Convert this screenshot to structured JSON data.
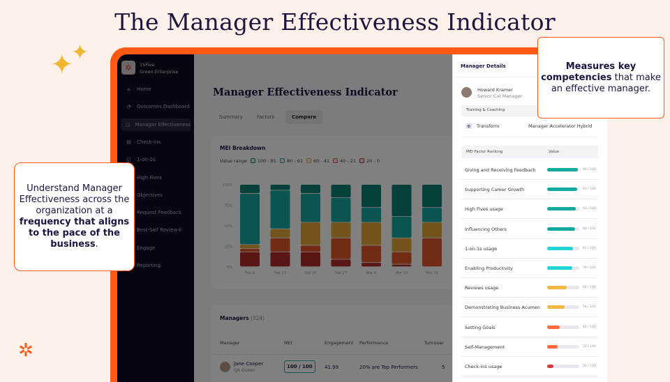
{
  "slide": {
    "title": "The Manager Effectiveness Indicator",
    "callout_left": {
      "pre": "Understand Manager Effectiveness across the organization at a ",
      "bold": "frequency that aligns to the pace of the business",
      "post": "."
    },
    "callout_right": {
      "bold": "Measures key competencies",
      "post": " that make an effective manager."
    },
    "accent": "#ff5a14"
  },
  "sidebar": {
    "org_name": "15Five",
    "org_sub": "Green Enterprise",
    "items": [
      {
        "label": "Home",
        "icon": "⌂"
      },
      {
        "label": "Outcomes Dashboard",
        "icon": "◔"
      },
      {
        "label": "Manager Effectiveness",
        "icon": "◫",
        "active": true
      },
      {
        "label": "Check-ins",
        "icon": "▤"
      },
      {
        "label": "1-on-1s",
        "icon": "◱"
      },
      {
        "label": "High Fives",
        "icon": "✋"
      },
      {
        "label": "Objectives",
        "icon": "◎"
      },
      {
        "label": "Request Feedback",
        "icon": "✉"
      },
      {
        "label": "Best-Self Review®",
        "icon": "★"
      },
      {
        "label": "Engage",
        "icon": "♡"
      },
      {
        "label": "Reporting",
        "icon": "▥"
      }
    ]
  },
  "main": {
    "title": "Manager Effectiveness Indicator",
    "tabs": [
      "Summary",
      "Factors",
      "Compare"
    ],
    "active_tab": "Compare",
    "breakdown_title": "MEI Breakdown",
    "value_range_label": "Value range",
    "managers_title": "Managers",
    "managers_count": "(324)",
    "table_headers": [
      "Manager",
      "MEI",
      "Engagement",
      "Performance",
      "Turnover"
    ],
    "rows": [
      {
        "name": "Jane Cooper",
        "role": "QA Queen",
        "mei": "100 / 100",
        "engagement": "41.99",
        "performance": "20% are Top Performers",
        "turnover": "5"
      }
    ]
  },
  "chart_data": {
    "type": "bar",
    "stacked": true,
    "categories": [
      "Feb 6",
      "Feb 13",
      "Feb 20",
      "Feb 27",
      "Mar 6",
      "Mar 13",
      "Mar 20"
    ],
    "yticks": [
      "100%",
      "75%",
      "50%",
      "25%",
      "0%"
    ],
    "ylim": [
      0,
      100
    ],
    "series": [
      {
        "name": "20 - 0",
        "color": "#b42a2a",
        "values": [
          18,
          18,
          18,
          9,
          5,
          3,
          0
        ]
      },
      {
        "name": "40 - 21",
        "color": "#e4562a",
        "values": [
          4,
          17,
          8,
          26,
          21,
          15,
          35
        ]
      },
      {
        "name": "60 - 41",
        "color": "#e6a838",
        "values": [
          5,
          11,
          28,
          19,
          28,
          17,
          19
        ]
      },
      {
        "name": "80 - 61",
        "color": "#14aaa2",
        "values": [
          62,
          47,
          35,
          30,
          18,
          26,
          18
        ]
      },
      {
        "name": "100 - 81",
        "color": "#0c8076",
        "values": [
          11,
          7,
          11,
          16,
          28,
          39,
          28
        ]
      }
    ]
  },
  "details": {
    "title": "Manager Details",
    "manager_name": "Howard Kramer",
    "manager_role": "Senior Cat Manager",
    "training_header": "Training & Coaching",
    "program": "Transform",
    "program_value": "Manager Accelerator Hybrid",
    "ranking_header": "MEI Factor Ranking",
    "value_header": "Value",
    "factors": [
      {
        "label": "Giving and Receiving Feedback",
        "value": 96,
        "text": "96 / 100",
        "color": "#13a99f"
      },
      {
        "label": "Supporting Career Growth",
        "value": 93,
        "text": "93 / 100",
        "color": "#13a99f"
      },
      {
        "label": "High Fives usage",
        "value": 90,
        "text": "90 / 100",
        "color": "#13a99f"
      },
      {
        "label": "Influencing Others",
        "value": 88,
        "text": "88 / 100",
        "color": "#13a99f"
      },
      {
        "label": "1-on-1s usage",
        "value": 81,
        "text": "81 / 100",
        "color": "#22d3d8"
      },
      {
        "label": "Enabling Productivity",
        "value": 78,
        "text": "78 / 100",
        "color": "#22d3d8"
      },
      {
        "label": "Reviews usage",
        "value": 60,
        "text": "60 / 100",
        "color": "#f4b942"
      },
      {
        "label": "Demonstrating Business Acumen",
        "value": 54,
        "text": "54 / 100",
        "color": "#f4b942"
      },
      {
        "label": "Setting Goals",
        "value": 40,
        "text": "40 / 100",
        "color": "#ff6a3d"
      },
      {
        "label": "Self-Management",
        "value": 32,
        "text": "32 / 100",
        "color": "#ff6a3d"
      },
      {
        "label": "Check-ins usage",
        "value": 20,
        "text": "20 / 100",
        "color": "#d73a3a"
      }
    ]
  }
}
